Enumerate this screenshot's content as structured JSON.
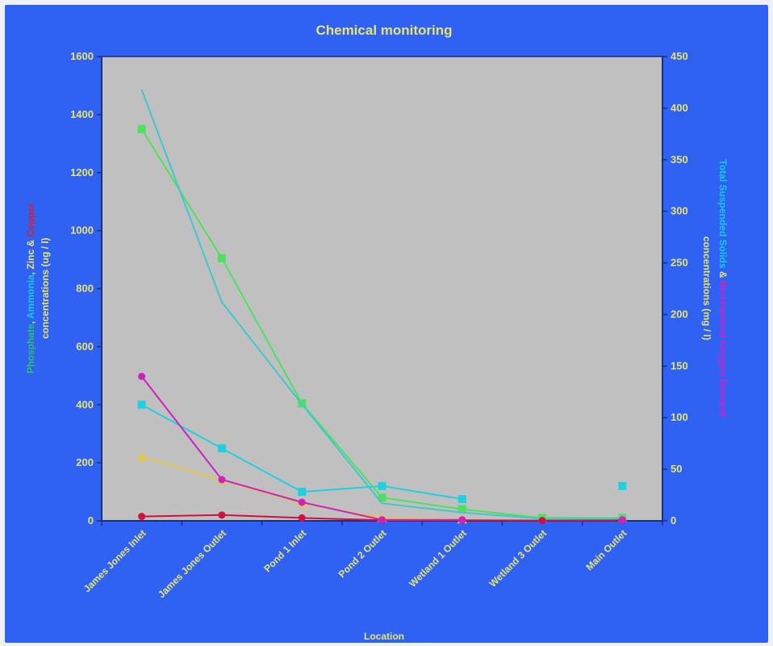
{
  "colors": {
    "background": "#2f62f2",
    "plot_area": "#c0c0c0",
    "text": "#e8e46a",
    "axis": "#1c2f7a"
  },
  "chart_data": {
    "type": "line",
    "title": "Chemical monitoring",
    "xlabel": "Location",
    "categories": [
      "James Jones Inlet",
      "James Jones Outlet",
      "Pond 1 Inlet",
      "Pond 2 Outlet",
      "Wetland 1 Outlet",
      "Wetland 3 Outlet",
      "Main Outlet"
    ],
    "y_left": {
      "ylim": [
        0,
        1600
      ],
      "ticks": [
        0,
        200,
        400,
        600,
        800,
        1000,
        1200,
        1400,
        1600
      ],
      "label_parts": [
        {
          "text": "Phosphate",
          "color": "#25c06a"
        },
        {
          "text": ", ",
          "color": "#e8e46a"
        },
        {
          "text": "Ammonia",
          "color": "#19c8e8"
        },
        {
          "text": ", Zinc & ",
          "color": "#e8e46a"
        },
        {
          "text": "Copper",
          "color": "#d81e34"
        }
      ],
      "label_line2": "concentrations (ug / l)"
    },
    "y_right": {
      "ylim": [
        0,
        450
      ],
      "ticks": [
        0,
        50,
        100,
        150,
        200,
        250,
        300,
        350,
        400,
        450
      ],
      "label_parts": [
        {
          "text": "Total Suspended Solids",
          "color": "#19c8e8"
        },
        {
          "text": " & ",
          "color": "#e8e46a"
        },
        {
          "text": "Biochemical Oxygen Demand",
          "color": "#cc22cc"
        }
      ],
      "label_line2": "concentrations (mg / l)"
    },
    "series": [
      {
        "axis": "left",
        "color": "#50e060",
        "marker": "square",
        "values": [
          1350,
          905,
          405,
          80,
          40,
          10,
          10
        ]
      },
      {
        "axis": "right",
        "color": "#40c8cc",
        "marker": "none",
        "values": [
          418,
          212,
          113,
          17,
          8,
          2,
          2
        ]
      },
      {
        "axis": "left",
        "color": "#20d0e0",
        "marker": "square",
        "values": [
          400,
          250,
          100,
          120,
          75,
          null,
          120
        ]
      },
      {
        "axis": "left",
        "color": "#e0c848",
        "marker": "triangle",
        "values": [
          220,
          140,
          60,
          10,
          5,
          null,
          null
        ]
      },
      {
        "axis": "left",
        "color": "#d01040",
        "marker": "circle",
        "values": [
          15,
          20,
          10,
          2,
          2,
          1,
          2
        ]
      },
      {
        "axis": "right",
        "color": "#d020c0",
        "marker": "circle",
        "values": [
          140,
          40,
          18,
          1,
          1,
          null,
          1
        ]
      }
    ]
  }
}
